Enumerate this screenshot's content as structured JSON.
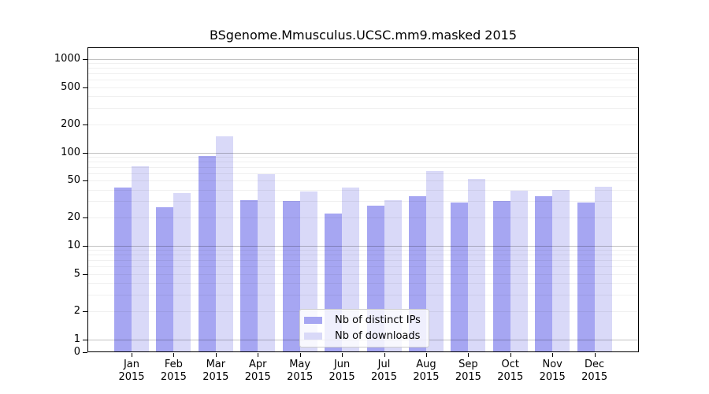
{
  "chart_data": {
    "type": "bar",
    "title": "BSgenome.Mmusculus.UCSC.mm9.masked 2015",
    "xlabel": "",
    "ylabel": "",
    "yscale": "log (with 0 baseline)",
    "ylim": [
      0,
      1000
    ],
    "y_ticks": [
      1000,
      500,
      200,
      100,
      50,
      20,
      10,
      5,
      2,
      1,
      0
    ],
    "grid": "horizontal major + log minor gridlines",
    "legend_position": "inside bottom-center",
    "categories": [
      "Jan",
      "Feb",
      "Mar",
      "Apr",
      "May",
      "Jun",
      "Jul",
      "Aug",
      "Sep",
      "Oct",
      "Nov",
      "Dec"
    ],
    "category_year": "2015",
    "series": [
      {
        "name": "Nb of distinct IPs",
        "color": "#a6a6f2",
        "values": [
          42,
          26,
          92,
          31,
          30,
          22,
          27,
          34,
          29,
          30,
          34,
          29
        ]
      },
      {
        "name": "Nb of downloads",
        "color": "#d9d9f8",
        "values": [
          71,
          37,
          150,
          59,
          38,
          42,
          31,
          63,
          52,
          39,
          40,
          43
        ]
      }
    ]
  }
}
